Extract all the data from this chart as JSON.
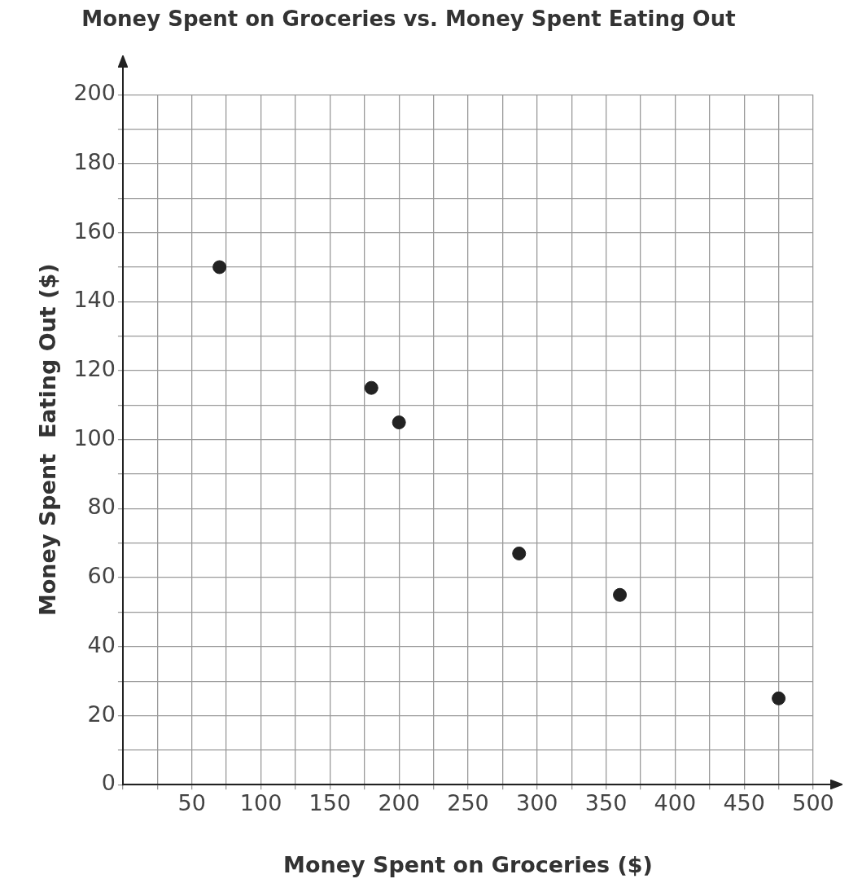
{
  "chart_data": {
    "type": "scatter",
    "title": "Money Spent on Groceries vs. Money Spent Eating Out",
    "xlabel": "Money Spent on Groceries ($)",
    "ylabel": "Money Spent  Eating Out ($)",
    "series": [
      {
        "color": "#222222",
        "x": [
          70,
          180,
          200,
          287,
          360,
          475
        ],
        "values": [
          150,
          115,
          105,
          67,
          55,
          25
        ]
      }
    ],
    "xlim": [
      0,
      500
    ],
    "xticks": [
      {
        "value": 0,
        "label": null
      },
      {
        "value": 25,
        "label": null
      },
      50,
      {
        "value": 75,
        "label": null
      },
      100,
      {
        "value": 125,
        "label": null
      },
      150,
      {
        "value": 175,
        "label": null
      },
      200,
      {
        "value": 225,
        "label": null
      },
      250,
      {
        "value": 275,
        "label": null
      },
      300,
      {
        "value": 325,
        "label": null
      },
      350,
      {
        "value": 375,
        "label": null
      },
      400,
      {
        "value": 425,
        "label": null
      },
      450,
      {
        "value": 475,
        "label": null
      },
      500
    ],
    "ylim": [
      0,
      200
    ],
    "yticks": [
      0,
      {
        "value": 10,
        "label": null
      },
      20,
      {
        "value": 30,
        "label": null
      },
      40,
      {
        "value": 50,
        "label": null
      },
      60,
      {
        "value": 70,
        "label": null
      },
      80,
      {
        "value": 90,
        "label": null
      },
      100,
      {
        "value": 110,
        "label": null
      },
      120,
      {
        "value": 130,
        "label": null
      },
      140,
      {
        "value": 150,
        "label": null
      },
      160,
      {
        "value": 170,
        "label": null
      },
      180,
      {
        "value": 190,
        "label": null
      },
      200
    ],
    "grid": true,
    "legend": false,
    "marker": "circle"
  }
}
